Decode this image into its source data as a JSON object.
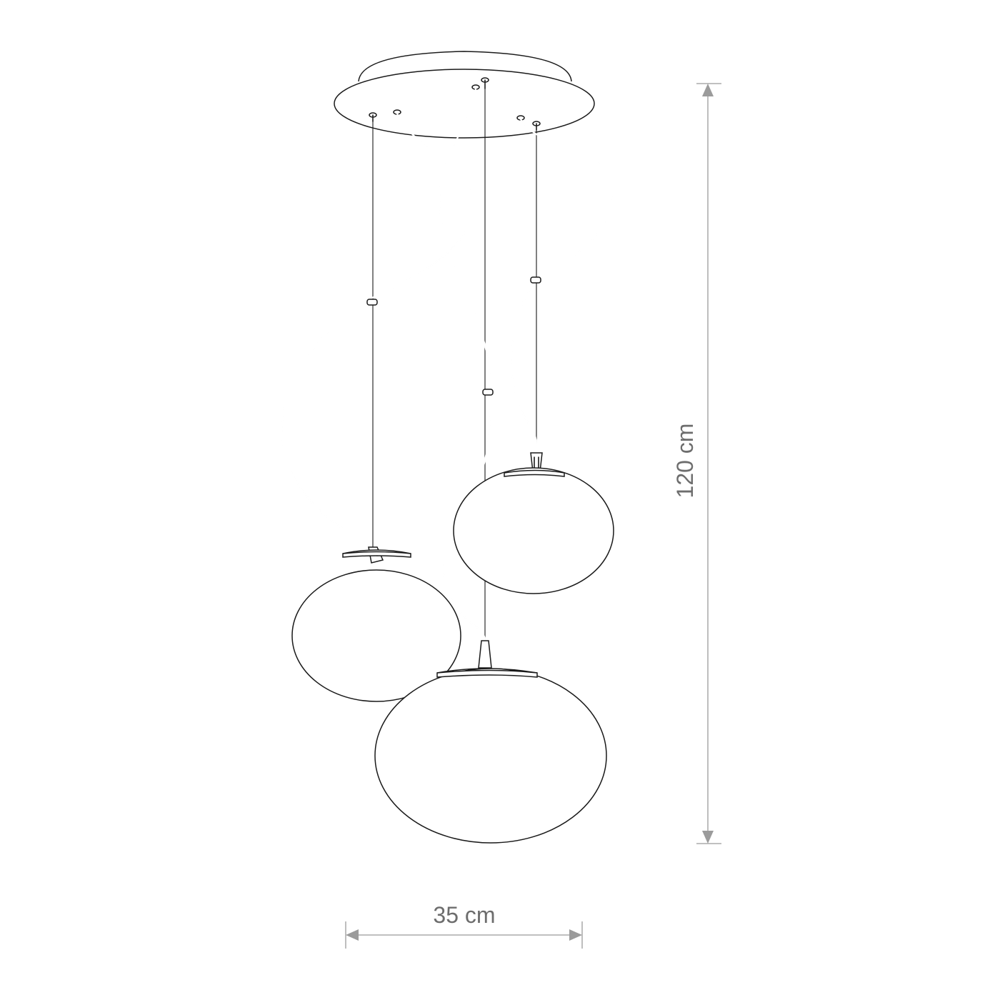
{
  "dimensions": {
    "height_label": "120 cm",
    "width_label": "35 cm"
  },
  "colors": {
    "line": "#1a1a1a",
    "dimension": "#9b9b9b",
    "dimension_text": "#6d6d6d",
    "background": "#ffffff"
  }
}
